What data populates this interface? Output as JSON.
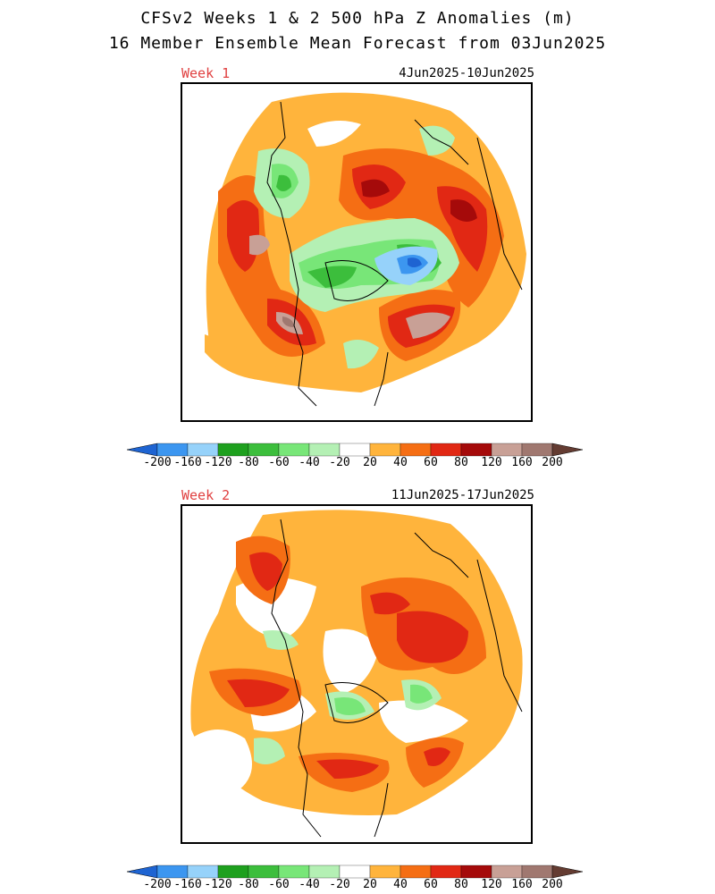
{
  "header": {
    "title_line1": "CFSv2 Weeks 1 & 2 500 hPa Z Anomalies (m)",
    "title_line2": "16 Member Ensemble Mean Forecast from 03Jun2025"
  },
  "panels": [
    {
      "label": "Week 1",
      "date_range": "4Jun2025-10Jun2025"
    },
    {
      "label": "Week 2",
      "date_range": "11Jun2025-17Jun2025"
    }
  ],
  "colorbar": {
    "labels": [
      "-200",
      "-160",
      "-120",
      "-80",
      "-60",
      "-40",
      "-20",
      "20",
      "40",
      "60",
      "80",
      "120",
      "160",
      "200"
    ],
    "colors": [
      "#1e64d2",
      "#3c96f0",
      "#96d2fa",
      "#1ea01e",
      "#3cbe3c",
      "#78e678",
      "#b4f0b4",
      "#ffffff",
      "#ffb43c",
      "#f56e14",
      "#e12814",
      "#a50a0a",
      "#c8a096",
      "#a07870",
      "#643c32"
    ]
  },
  "colors": {
    "title_text": "#000000",
    "panel_label": "#e04040"
  }
}
